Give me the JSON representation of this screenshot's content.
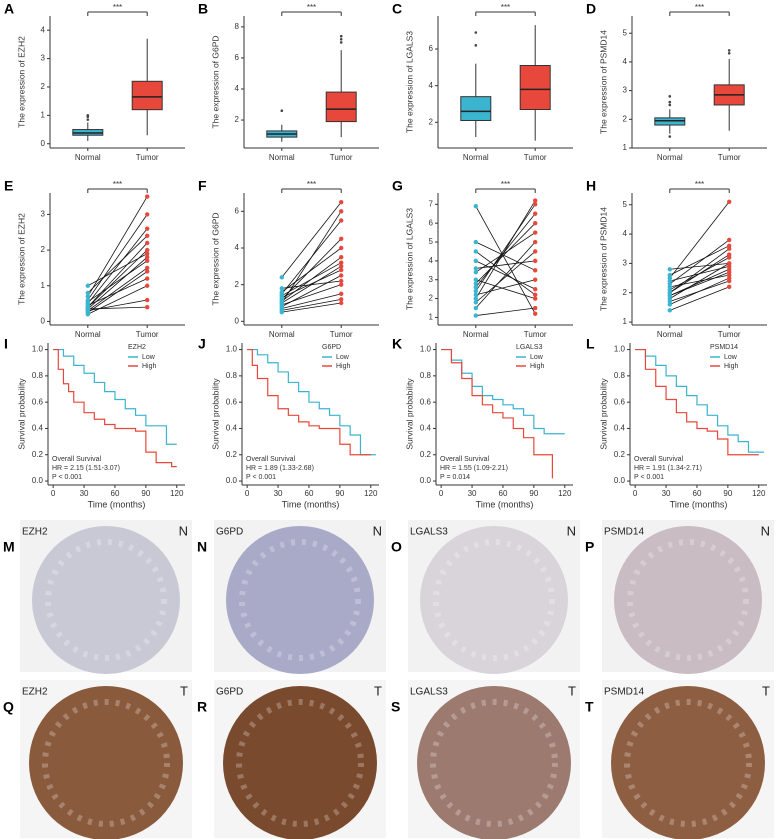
{
  "chart_data": [
    {
      "type": "box",
      "panel": "A",
      "ylabel": "The expression of EZH2",
      "categories": [
        "Normal",
        "Tumor"
      ],
      "colors": [
        "#3bb4cf",
        "#e8483b"
      ],
      "significance": "***",
      "ylim": [
        -0.15,
        4.5
      ],
      "yticks": [
        0,
        1,
        2,
        3,
        4
      ],
      "boxes": [
        {
          "min": 0.1,
          "q1": 0.3,
          "median": 0.38,
          "q3": 0.5,
          "max": 0.75,
          "outliers": [
            0.85,
            0.95,
            1.0
          ]
        },
        {
          "min": 0.3,
          "q1": 1.2,
          "median": 1.65,
          "q3": 2.2,
          "max": 3.7,
          "outliers": []
        }
      ]
    },
    {
      "type": "box",
      "panel": "B",
      "ylabel": "The expression of G6PD",
      "categories": [
        "Normal",
        "Tumor"
      ],
      "colors": [
        "#3bb4cf",
        "#e8483b"
      ],
      "significance": "***",
      "ylim": [
        0.2,
        8.7
      ],
      "yticks": [
        2,
        4,
        6,
        8
      ],
      "boxes": [
        {
          "min": 0.6,
          "q1": 0.9,
          "median": 1.1,
          "q3": 1.3,
          "max": 1.7,
          "outliers": [
            2.6
          ]
        },
        {
          "min": 0.9,
          "q1": 1.9,
          "median": 2.7,
          "q3": 3.8,
          "max": 6.5,
          "outliers": [
            7.0,
            7.2,
            7.4
          ]
        }
      ]
    },
    {
      "type": "box",
      "panel": "C",
      "ylabel": "The expression of LGALS3",
      "categories": [
        "Normal",
        "Tumor"
      ],
      "colors": [
        "#3bb4cf",
        "#e8483b"
      ],
      "significance": "***",
      "ylim": [
        0.6,
        7.8
      ],
      "yticks": [
        2,
        4,
        6
      ],
      "boxes": [
        {
          "min": 1.2,
          "q1": 2.1,
          "median": 2.6,
          "q3": 3.4,
          "max": 5.2,
          "outliers": [
            6.2,
            6.9
          ]
        },
        {
          "min": 1.0,
          "q1": 2.7,
          "median": 3.8,
          "q3": 5.1,
          "max": 7.3,
          "outliers": []
        }
      ]
    },
    {
      "type": "box",
      "panel": "D",
      "ylabel": "The expression of PSMD14",
      "categories": [
        "Normal",
        "Tumor"
      ],
      "colors": [
        "#3bb4cf",
        "#e8483b"
      ],
      "significance": "***",
      "ylim": [
        1,
        5.6
      ],
      "yticks": [
        1,
        2,
        3,
        4,
        5
      ],
      "boxes": [
        {
          "min": 1.5,
          "q1": 1.8,
          "median": 1.95,
          "q3": 2.05,
          "max": 2.35,
          "outliers": [
            2.5,
            2.6,
            2.8,
            1.4
          ]
        },
        {
          "min": 1.6,
          "q1": 2.5,
          "median": 2.85,
          "q3": 3.2,
          "max": 4.1,
          "outliers": [
            4.3,
            4.4
          ]
        }
      ]
    },
    {
      "type": "paired",
      "panel": "E",
      "ylabel": "The expression of EZH2",
      "categories": [
        "Normal",
        "Tumor"
      ],
      "colors": [
        "#3bb4cf",
        "#e8483b"
      ],
      "significance": "***",
      "ylim": [
        -0.1,
        3.6
      ],
      "yticks": [
        0,
        1,
        2,
        3
      ],
      "normal": [
        0.2,
        0.3,
        0.35,
        0.4,
        0.45,
        0.5,
        0.3,
        0.6,
        0.25,
        0.7,
        0.4,
        0.55,
        0.8,
        0.35,
        1.0
      ],
      "tumor": [
        1.0,
        1.5,
        1.8,
        2.2,
        1.2,
        2.6,
        0.6,
        3.0,
        1.4,
        3.5,
        2.0,
        1.7,
        2.4,
        0.4,
        1.9
      ]
    },
    {
      "type": "paired",
      "panel": "F",
      "ylabel": "The expression of G6PD",
      "categories": [
        "Normal",
        "Tumor"
      ],
      "colors": [
        "#3bb4cf",
        "#e8483b"
      ],
      "significance": "***",
      "ylim": [
        -0.2,
        7.0
      ],
      "yticks": [
        0,
        2,
        4,
        6
      ],
      "normal": [
        0.5,
        0.8,
        1.0,
        1.2,
        0.9,
        1.5,
        1.1,
        0.7,
        1.3,
        1.6,
        2.4,
        1.0,
        0.6,
        1.4,
        1.8
      ],
      "tumor": [
        1.0,
        2.5,
        3.0,
        4.5,
        2.0,
        5.5,
        3.5,
        1.5,
        2.8,
        4.0,
        6.5,
        6.0,
        1.2,
        3.2,
        2.2
      ]
    },
    {
      "type": "paired",
      "panel": "G",
      "ylabel": "The expression of LGALS3",
      "categories": [
        "Normal",
        "Tumor"
      ],
      "colors": [
        "#3bb4cf",
        "#e8483b"
      ],
      "significance": "***",
      "ylim": [
        0.6,
        7.6
      ],
      "yticks": [
        1,
        2,
        3,
        4,
        5,
        6,
        7
      ],
      "normal": [
        1.1,
        1.8,
        2.2,
        2.6,
        3.0,
        3.4,
        2.0,
        4.0,
        5.0,
        6.9,
        2.8,
        3.6,
        1.5,
        4.5,
        2.4
      ],
      "tumor": [
        1.5,
        4.5,
        3.0,
        6.5,
        2.0,
        5.5,
        7.2,
        2.5,
        3.5,
        1.2,
        6.0,
        4.0,
        5.0,
        2.2,
        7.0
      ]
    },
    {
      "type": "paired",
      "panel": "H",
      "ylabel": "The expression of PSMD14",
      "categories": [
        "Normal",
        "Tumor"
      ],
      "colors": [
        "#3bb4cf",
        "#e8483b"
      ],
      "significance": "***",
      "ylim": [
        0.9,
        5.4
      ],
      "yticks": [
        1,
        2,
        3,
        4,
        5
      ],
      "normal": [
        1.4,
        1.6,
        1.8,
        1.9,
        2.0,
        2.1,
        2.2,
        2.3,
        2.5,
        2.8,
        1.7,
        2.0,
        2.4,
        1.9,
        2.6
      ],
      "tumor": [
        2.2,
        2.5,
        3.0,
        2.8,
        3.5,
        3.2,
        2.6,
        3.8,
        5.1,
        3.0,
        2.4,
        3.3,
        2.9,
        2.7,
        3.6
      ]
    },
    {
      "type": "km",
      "panel": "I",
      "legend_title": "EZH2",
      "xlabel": "Time (months)",
      "ylabel": "Survival probability",
      "annotations": [
        "Overall Survival",
        "HR = 2.15 (1.51-3.07)",
        "P < 0.001"
      ],
      "xlim": [
        -5,
        128
      ],
      "xticks": [
        0,
        30,
        60,
        90,
        120
      ],
      "ylim": [
        -0.03,
        1.05
      ],
      "yticks": [
        {
          "value": 0,
          "label": "0.0"
        },
        0.2,
        0.4,
        0.6,
        0.8,
        {
          "value": 1,
          "label": "1.0"
        }
      ],
      "series": [
        {
          "name": "Low",
          "color": "#3bb4cf",
          "x": [
            0,
            10,
            20,
            30,
            40,
            50,
            60,
            70,
            80,
            90,
            100,
            110,
            120
          ],
          "values": [
            1,
            0.95,
            0.88,
            0.82,
            0.75,
            0.68,
            0.62,
            0.55,
            0.5,
            0.42,
            0.42,
            0.28,
            0.28
          ]
        },
        {
          "name": "High",
          "color": "#e8483b",
          "x": [
            0,
            5,
            10,
            15,
            20,
            30,
            40,
            50,
            60,
            70,
            80,
            90,
            100,
            115,
            120
          ],
          "values": [
            1,
            0.85,
            0.74,
            0.68,
            0.6,
            0.52,
            0.47,
            0.43,
            0.4,
            0.4,
            0.38,
            0.22,
            0.14,
            0.11,
            0.11
          ]
        }
      ]
    },
    {
      "type": "km",
      "panel": "J",
      "legend_title": "G6PD",
      "xlabel": "Time (months)",
      "ylabel": "Survival probability",
      "annotations": [
        "Overall Survival",
        "HR = 1.89 (1.33-2.68)",
        "P < 0.001"
      ],
      "xlim": [
        -5,
        128
      ],
      "xticks": [
        0,
        30,
        60,
        90,
        120
      ],
      "ylim": [
        -0.03,
        1.05
      ],
      "yticks": [
        {
          "value": 0,
          "label": "0.0"
        },
        0.2,
        0.4,
        0.6,
        0.8,
        {
          "value": 1,
          "label": "1.0"
        }
      ],
      "series": [
        {
          "name": "Low",
          "color": "#3bb4cf",
          "x": [
            0,
            10,
            20,
            30,
            40,
            50,
            60,
            70,
            80,
            90,
            100,
            110,
            125
          ],
          "values": [
            1,
            0.96,
            0.9,
            0.83,
            0.75,
            0.68,
            0.6,
            0.55,
            0.5,
            0.42,
            0.35,
            0.2,
            0.2
          ]
        },
        {
          "name": "High",
          "color": "#e8483b",
          "x": [
            0,
            5,
            10,
            20,
            30,
            40,
            50,
            60,
            70,
            80,
            90,
            100,
            120
          ],
          "values": [
            1,
            0.88,
            0.78,
            0.65,
            0.55,
            0.5,
            0.45,
            0.42,
            0.4,
            0.4,
            0.28,
            0.2,
            0.2
          ]
        }
      ]
    },
    {
      "type": "km",
      "panel": "K",
      "legend_title": "LGALS3",
      "xlabel": "Time (months)",
      "ylabel": "Survival probability",
      "annotations": [
        "Overall Survival",
        "HR = 1.55 (1.09-2.21)",
        "P = 0.014"
      ],
      "xlim": [
        -5,
        128
      ],
      "xticks": [
        0,
        30,
        60,
        90,
        120
      ],
      "ylim": [
        -0.03,
        1.05
      ],
      "yticks": [
        {
          "value": 0,
          "label": "0.0"
        },
        0.2,
        0.4,
        0.6,
        0.8,
        {
          "value": 1,
          "label": "1.0"
        }
      ],
      "series": [
        {
          "name": "Low",
          "color": "#3bb4cf",
          "x": [
            0,
            10,
            20,
            30,
            40,
            50,
            60,
            70,
            80,
            90,
            100,
            120
          ],
          "values": [
            1,
            0.92,
            0.82,
            0.72,
            0.65,
            0.62,
            0.58,
            0.55,
            0.5,
            0.4,
            0.36,
            0.36
          ]
        },
        {
          "name": "High",
          "color": "#e8483b",
          "x": [
            0,
            10,
            20,
            30,
            40,
            50,
            60,
            70,
            80,
            90,
            100,
            108
          ],
          "values": [
            1,
            0.9,
            0.78,
            0.65,
            0.58,
            0.52,
            0.48,
            0.4,
            0.33,
            0.2,
            0.2,
            0.02
          ]
        }
      ]
    },
    {
      "type": "km",
      "panel": "L",
      "legend_title": "PSMD14",
      "xlabel": "Time (months)",
      "ylabel": "Survival probability",
      "annotations": [
        "Overall Survival",
        "HR = 1.91 (1.34-2.71)",
        "P < 0.001"
      ],
      "xlim": [
        -5,
        128
      ],
      "xticks": [
        0,
        30,
        60,
        90,
        120
      ],
      "ylim": [
        -0.03,
        1.05
      ],
      "yticks": [
        {
          "value": 0,
          "label": "0.0"
        },
        0.2,
        0.4,
        0.6,
        0.8,
        {
          "value": 1,
          "label": "1.0"
        }
      ],
      "series": [
        {
          "name": "Low",
          "color": "#3bb4cf",
          "x": [
            0,
            10,
            20,
            30,
            40,
            50,
            60,
            70,
            80,
            90,
            100,
            110,
            125
          ],
          "values": [
            1,
            0.95,
            0.88,
            0.8,
            0.72,
            0.65,
            0.58,
            0.5,
            0.42,
            0.35,
            0.3,
            0.22,
            0.22
          ]
        },
        {
          "name": "High",
          "color": "#e8483b",
          "x": [
            0,
            10,
            20,
            30,
            40,
            50,
            60,
            70,
            80,
            90,
            100,
            110,
            120
          ],
          "values": [
            1,
            0.85,
            0.72,
            0.62,
            0.52,
            0.45,
            0.4,
            0.38,
            0.32,
            0.2,
            0.2,
            0.2,
            0.2
          ]
        }
      ]
    }
  ],
  "images": [
    {
      "panel": "M",
      "gene": "EZH2",
      "tissue": "N",
      "color": "#c9c9d6"
    },
    {
      "panel": "N",
      "gene": "G6PD",
      "tissue": "N",
      "color": "#a9a9c8"
    },
    {
      "panel": "O",
      "gene": "LGALS3",
      "tissue": "N",
      "color": "#d8d4da"
    },
    {
      "panel": "P",
      "gene": "PSMD14",
      "tissue": "N",
      "color": "#c9bcc2"
    },
    {
      "panel": "Q",
      "gene": "EZH2",
      "tissue": "T",
      "color": "#8a5a3c"
    },
    {
      "panel": "R",
      "gene": "G6PD",
      "tissue": "T",
      "color": "#7a4a2e"
    },
    {
      "panel": "S",
      "gene": "LGALS3",
      "tissue": "T",
      "color": "#9c7a70"
    },
    {
      "panel": "T",
      "gene": "PSMD14",
      "tissue": "T",
      "color": "#8e5e42"
    }
  ]
}
